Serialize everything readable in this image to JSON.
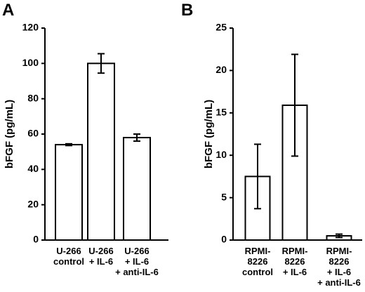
{
  "chart_data": [
    {
      "type": "bar",
      "panel": "A",
      "ylabel": "bFGF (pg/mL)",
      "ylim": [
        0,
        120
      ],
      "yticks": [
        0,
        20,
        40,
        60,
        80,
        100,
        120
      ],
      "categories": [
        [
          "U-266",
          "control"
        ],
        [
          "U-266",
          "+ IL-6"
        ],
        [
          "U-266",
          "+ IL-6",
          "+ anti-IL-6"
        ]
      ],
      "values": [
        54,
        100,
        58
      ],
      "errors": [
        0.5,
        5.5,
        2
      ]
    },
    {
      "type": "bar",
      "panel": "B",
      "ylabel": "bFGF (pg/mL)",
      "ylim": [
        0,
        25
      ],
      "yticks": [
        0,
        5,
        10,
        15,
        20,
        25
      ],
      "categories": [
        [
          "RPMI-",
          "8226",
          "control"
        ],
        [
          "RPMI-",
          "8226",
          "+ IL-6"
        ],
        [
          "RPMI-",
          "8226",
          "+ IL-6",
          "+ anti-IL-6"
        ]
      ],
      "values": [
        7.5,
        15.9,
        0.5
      ],
      "errors": [
        3.8,
        6.0,
        0.2
      ]
    }
  ]
}
